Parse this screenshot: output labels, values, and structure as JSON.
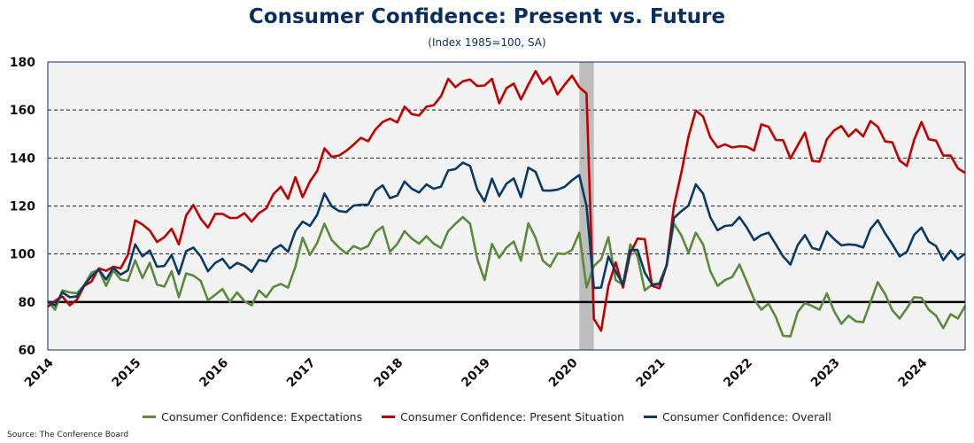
{
  "chart_data": {
    "type": "line",
    "title": "Consumer Confidence: Present vs. Future",
    "subtitle": "(Index 1985=100, SA)",
    "source": "Source: The Conference Board",
    "xlabel": "",
    "ylabel": "",
    "x_start": "2014-01",
    "x_frequency": "monthly",
    "x_ticks": [
      "2014",
      "2015",
      "2016",
      "2017",
      "2018",
      "2019",
      "2020",
      "2021",
      "2022",
      "2023",
      "2024"
    ],
    "y_ticks": [
      60,
      80,
      100,
      120,
      140,
      160,
      180
    ],
    "ylim": [
      60,
      180
    ],
    "grid": "horizontal dashed",
    "reference_line": 80,
    "shaded_region": {
      "label": "recession",
      "start": "2020-02",
      "end": "2020-04"
    },
    "legend_position": "bottom",
    "colors": {
      "Expectations": "#5b8a3c",
      "Present": "#c00000",
      "Overall": "#0b3a62",
      "title": "#0b2f5c"
    },
    "series": [
      {
        "name": "Consumer Confidence: Expectations",
        "key": "Expectations",
        "values": [
          80.5,
          76.8,
          84.8,
          84,
          83.6,
          87,
          92.2,
          93.5,
          86.7,
          93.2,
          89.4,
          88.8,
          97.4,
          90,
          96.3,
          87.3,
          86.4,
          92.8,
          82,
          91.9,
          91,
          88.8,
          80.7,
          83,
          85.4,
          80,
          84,
          80.3,
          78.6,
          84.8,
          82,
          86.3,
          87.5,
          86,
          94.7,
          106.8,
          99.6,
          104.6,
          112.6,
          105.8,
          102.7,
          100.2,
          103.3,
          102,
          103.3,
          109.1,
          111.4,
          100.9,
          104.2,
          109.5,
          106.4,
          104.3,
          107.4,
          104.3,
          102.5,
          109.5,
          112.6,
          115.4,
          112.6,
          97.8,
          89.1,
          104.2,
          98.4,
          102.7,
          105.2,
          97.2,
          112.8,
          106.7,
          97.2,
          94.7,
          100.2,
          100,
          101.7,
          108.9,
          86,
          95,
          97.8,
          107,
          89.1,
          87.3,
          104,
          99,
          84.8,
          87.3,
          87.9,
          95.3,
          112.6,
          107.9,
          100.5,
          108.9,
          104,
          92.8,
          86.7,
          89.1,
          90.4,
          95.6,
          88.5,
          81.1,
          76.8,
          79.3,
          73.7,
          65.9,
          65.7,
          75.8,
          79.6,
          78.3,
          76.8,
          83.6,
          76.2,
          70.9,
          74.3,
          71.9,
          71.6,
          79.9,
          88.3,
          83.3,
          76.5,
          73.1,
          77.4,
          82,
          81.7,
          76.8,
          74.3,
          69.1,
          74.9,
          73.1,
          78.3
        ]
      },
      {
        "name": "Consumer Confidence: Present Situation",
        "key": "Present",
        "values": [
          78,
          80.5,
          82.3,
          78.6,
          81,
          86.7,
          88.5,
          94,
          93,
          94.7,
          94,
          99.6,
          114,
          112.3,
          109.8,
          105,
          107,
          110.5,
          104,
          116,
          120.4,
          114.7,
          111,
          116.7,
          116.7,
          115,
          115,
          117,
          113.5,
          117,
          119,
          125,
          128,
          123,
          132,
          123.7,
          130.2,
          134.6,
          144,
          140.5,
          141,
          143,
          145.6,
          148.4,
          147,
          151.9,
          155,
          156.4,
          154.8,
          161.4,
          158.3,
          157.7,
          161.4,
          162,
          165.7,
          173,
          169.5,
          172,
          172.7,
          170,
          170.2,
          173,
          162.8,
          169.1,
          171,
          164.4,
          170.6,
          176.2,
          170.9,
          173.7,
          166.5,
          170.6,
          174.3,
          169.5,
          166.9,
          73,
          68,
          86.7,
          96.5,
          86,
          100.2,
          106.4,
          106.2,
          86.7,
          85.7,
          95.3,
          120,
          133.6,
          149,
          159.8,
          157.3,
          148.6,
          144.4,
          145.7,
          144.4,
          144.9,
          144.7,
          143.1,
          154,
          153,
          147.5,
          147.4,
          139.8,
          145.3,
          150.6,
          138.8,
          138.5,
          147.8,
          151.5,
          153.3,
          149,
          151.9,
          149,
          155.4,
          153,
          146.9,
          146.5,
          138.9,
          136.7,
          147.6,
          155,
          147.8,
          147.2,
          141,
          141,
          135.7,
          133.8
        ]
      },
      {
        "name": "Consumer Confidence: Overall",
        "key": "Overall",
        "values": [
          80,
          78.6,
          84,
          82,
          82.3,
          87,
          90.7,
          93.5,
          89.4,
          94.3,
          91.4,
          93.2,
          104,
          99,
          101.5,
          94.7,
          95,
          99.6,
          91.6,
          101.2,
          102.7,
          99,
          92.8,
          96.3,
          98,
          94,
          96.3,
          95,
          92.6,
          97.5,
          96.9,
          101.9,
          103.7,
          100.9,
          109.5,
          113.5,
          111.7,
          116.3,
          125.2,
          119.8,
          117.9,
          117.5,
          120.2,
          120.5,
          120.5,
          126.4,
          128.6,
          123.3,
          124.4,
          130.2,
          127.2,
          125.6,
          129,
          127.2,
          128,
          134.8,
          135.4,
          138.1,
          136.7,
          126.8,
          121.9,
          131.4,
          124.1,
          129.3,
          131.5,
          123.7,
          136,
          134.2,
          126.5,
          126.4,
          126.8,
          128,
          130.7,
          132.9,
          120,
          85.8,
          86,
          99,
          92.8,
          87.3,
          101.7,
          101.7,
          92.2,
          87.3,
          87.3,
          95.3,
          115,
          117.8,
          120.2,
          129,
          125.2,
          115.3,
          109.9,
          111.7,
          112,
          115.4,
          111.1,
          105.8,
          107.9,
          108.9,
          104,
          99,
          95.6,
          103.7,
          107.9,
          102.5,
          101.7,
          109.3,
          106.2,
          103.6,
          104,
          103.7,
          102.7,
          110.4,
          114.1,
          108.6,
          104,
          99,
          100.9,
          108,
          111,
          105.2,
          103.3,
          97.4,
          101.5,
          97.8,
          100.2
        ]
      }
    ]
  }
}
